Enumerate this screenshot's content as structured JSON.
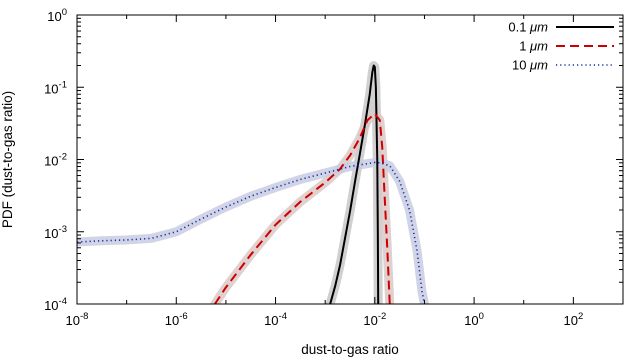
{
  "chart_data": {
    "type": "line",
    "title": "",
    "xlabel": "dust-to-gas ratio",
    "ylabel": "PDF (dust-to-gas ratio)",
    "xscale": "log",
    "yscale": "log",
    "xlim": [
      1e-08,
      1000
    ],
    "ylim": [
      0.0001,
      1
    ],
    "grid": false,
    "legend_position": "top-right",
    "x_ticks": [
      {
        "value": 1e-08,
        "base": "10",
        "exp": "-8"
      },
      {
        "value": 1e-06,
        "base": "10",
        "exp": "-6"
      },
      {
        "value": 0.0001,
        "base": "10",
        "exp": "-4"
      },
      {
        "value": 0.01,
        "base": "10",
        "exp": "-2"
      },
      {
        "value": 1,
        "base": "10",
        "exp": "0"
      },
      {
        "value": 100,
        "base": "10",
        "exp": "2"
      }
    ],
    "y_ticks": [
      {
        "value": 0.0001,
        "base": "10",
        "exp": "-4"
      },
      {
        "value": 0.001,
        "base": "10",
        "exp": "-3"
      },
      {
        "value": 0.01,
        "base": "10",
        "exp": "-2"
      },
      {
        "value": 0.1,
        "base": "10",
        "exp": "-1"
      },
      {
        "value": 1,
        "base": "10",
        "exp": "0"
      }
    ],
    "series": [
      {
        "name": "0.1 μm",
        "name_number": "0.1",
        "name_unit": "μm",
        "color": "#000000",
        "dash": "solid",
        "band_color": "#c8c8c8",
        "points": [
          [
            0.00126,
            0.0001
          ],
          [
            0.0016,
            0.00018
          ],
          [
            0.002,
            0.00035
          ],
          [
            0.0025,
            0.0008
          ],
          [
            0.0032,
            0.002
          ],
          [
            0.004,
            0.005
          ],
          [
            0.005,
            0.012
          ],
          [
            0.0063,
            0.03
          ],
          [
            0.0079,
            0.08
          ],
          [
            0.0089,
            0.16
          ],
          [
            0.0095,
            0.2
          ],
          [
            0.01,
            0.19
          ],
          [
            0.0105,
            0.1
          ],
          [
            0.0112,
            0.01
          ],
          [
            0.0115,
            0.001
          ],
          [
            0.0117,
            0.0001
          ]
        ]
      },
      {
        "name": "1 μm",
        "name_number": "1",
        "name_unit": "μm",
        "color": "#cc0000",
        "dash": "dashed",
        "band_color": "#dcc8c8",
        "points": [
          [
            6e-06,
            0.0001
          ],
          [
            1e-05,
            0.00017
          ],
          [
            3.16e-05,
            0.00048
          ],
          [
            0.0001,
            0.00125
          ],
          [
            0.000316,
            0.0026
          ],
          [
            0.001,
            0.0048
          ],
          [
            0.002,
            0.0074
          ],
          [
            0.0032,
            0.0115
          ],
          [
            0.005,
            0.02
          ],
          [
            0.0071,
            0.035
          ],
          [
            0.01,
            0.043
          ],
          [
            0.0126,
            0.035
          ],
          [
            0.0141,
            0.015
          ],
          [
            0.0158,
            0.003
          ],
          [
            0.0178,
            0.0006
          ],
          [
            0.02,
            0.0001
          ]
        ]
      },
      {
        "name": "10 μm",
        "name_number": "10",
        "name_unit": "μm",
        "color": "#1a2a9c",
        "dash": "dotted",
        "band_color": "#c8cce2",
        "points": [
          [
            1e-08,
            0.00072
          ],
          [
            3.16e-08,
            0.00075
          ],
          [
            1e-07,
            0.00077
          ],
          [
            3.16e-07,
            0.00081
          ],
          [
            1e-06,
            0.001
          ],
          [
            3.16e-06,
            0.0015
          ],
          [
            1e-05,
            0.0022
          ],
          [
            3.16e-05,
            0.0031
          ],
          [
            0.0001,
            0.0041
          ],
          [
            0.000316,
            0.0053
          ],
          [
            0.001,
            0.0065
          ],
          [
            0.00316,
            0.008
          ],
          [
            0.01,
            0.0091
          ],
          [
            0.0126,
            0.009
          ],
          [
            0.02,
            0.0082
          ],
          [
            0.0316,
            0.005
          ],
          [
            0.05,
            0.002
          ],
          [
            0.0708,
            0.00055
          ],
          [
            0.0891,
            0.00015
          ],
          [
            0.1,
            0.0001
          ]
        ]
      }
    ]
  }
}
